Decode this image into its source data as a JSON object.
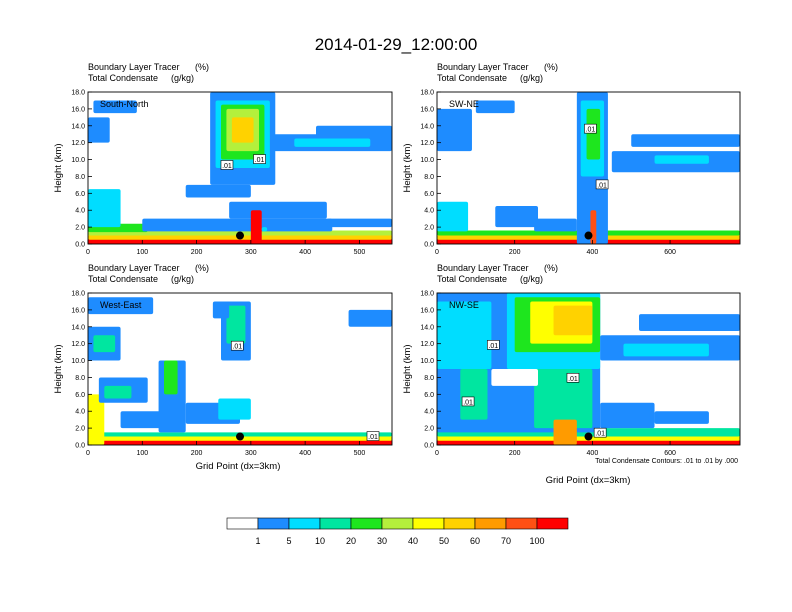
{
  "title": "2014-01-29_12:00:00",
  "panel_header_line1": "Boundary Layer Tracer",
  "panel_header_unit1": "(%)",
  "panel_header_line2": "Total Condensate",
  "panel_header_unit2": "(g/kg)",
  "ylabel": "Height (km)",
  "xlabel": "Grid Point (dx=3km)",
  "contour_note": "Total Condensate Contours: .01 to .01 by .000",
  "colorbar": {
    "levels": [
      "1",
      "5",
      "10",
      "20",
      "30",
      "40",
      "50",
      "60",
      "70",
      "100"
    ],
    "colors": [
      "#ffffff",
      "#1e8cff",
      "#00ddff",
      "#00e6a0",
      "#1ee61e",
      "#b4f03c",
      "#ffff00",
      "#ffd200",
      "#ff9b00",
      "#ff5014",
      "#ff0000"
    ]
  },
  "chart_data": [
    {
      "type": "heatmap",
      "name": "South-North",
      "xlim": [
        0,
        560
      ],
      "ylim": [
        0,
        18
      ],
      "xticks": [
        "0",
        "100",
        "200",
        "300",
        "400",
        "500"
      ],
      "yticks": [
        "0.0",
        "2.0",
        "4.0",
        "6.0",
        "8.0",
        "10.0",
        "12.0",
        "14.0",
        "16.0",
        "18.0"
      ],
      "marker_x": 280,
      "contour_labels": [
        {
          "text": ".01",
          "x": 256,
          "y": 9.3
        },
        {
          "text": ".01",
          "x": 316,
          "y": 10.0
        }
      ],
      "fields": [
        {
          "x": [
            0,
            560
          ],
          "y": [
            0,
            0.7
          ],
          "level": 10
        },
        {
          "x": [
            0,
            560
          ],
          "y": [
            0.5,
            1.1
          ],
          "level": 7
        },
        {
          "x": [
            0,
            560
          ],
          "y": [
            1.0,
            1.6
          ],
          "level": 5
        },
        {
          "x": [
            0,
            110
          ],
          "y": [
            1.4,
            2.4
          ],
          "level": 4
        },
        {
          "x": [
            0,
            60
          ],
          "y": [
            2.0,
            6.5
          ],
          "level": 2
        },
        {
          "x": [
            0,
            40
          ],
          "y": [
            12.0,
            15.0
          ],
          "level": 1
        },
        {
          "x": [
            10,
            90
          ],
          "y": [
            15.5,
            17.0
          ],
          "level": 1
        },
        {
          "x": [
            100,
            450
          ],
          "y": [
            1.5,
            3.0
          ],
          "level": 1
        },
        {
          "x": [
            180,
            300
          ],
          "y": [
            5.5,
            7.0
          ],
          "level": 1
        },
        {
          "x": [
            260,
            440
          ],
          "y": [
            3.0,
            5.0
          ],
          "level": 1
        },
        {
          "x": [
            440,
            560
          ],
          "y": [
            2.0,
            3.0
          ],
          "level": 1
        },
        {
          "x": [
            225,
            345
          ],
          "y": [
            7.0,
            18.0
          ],
          "level": 1
        },
        {
          "x": [
            235,
            335
          ],
          "y": [
            9.0,
            17.0
          ],
          "level": 2
        },
        {
          "x": [
            245,
            325
          ],
          "y": [
            10.0,
            16.5
          ],
          "level": 4
        },
        {
          "x": [
            255,
            315
          ],
          "y": [
            11.0,
            16.0
          ],
          "level": 5
        },
        {
          "x": [
            265,
            305
          ],
          "y": [
            12.0,
            15.0
          ],
          "level": 7
        },
        {
          "x": [
            300,
            320
          ],
          "y": [
            0.0,
            4.0
          ],
          "level": 10
        },
        {
          "x": [
            320,
            330
          ],
          "y": [
            1.5,
            2.0
          ],
          "level": 2
        },
        {
          "x": [
            340,
            560
          ],
          "y": [
            11.0,
            13.0
          ],
          "level": 1
        },
        {
          "x": [
            380,
            520
          ],
          "y": [
            11.5,
            12.5
          ],
          "level": 2
        },
        {
          "x": [
            420,
            560
          ],
          "y": [
            12.5,
            14.0
          ],
          "level": 1
        }
      ]
    },
    {
      "type": "heatmap",
      "name": "SW-NE",
      "xlim": [
        0,
        780
      ],
      "ylim": [
        0,
        18
      ],
      "xticks": [
        "0",
        "200",
        "400",
        "600"
      ],
      "yticks": [
        "0.0",
        "2.0",
        "4.0",
        "6.0",
        "8.0",
        "10.0",
        "12.0",
        "14.0",
        "16.0",
        "18.0"
      ],
      "marker_x": 390,
      "contour_labels": [
        {
          "text": ".01",
          "x": 395,
          "y": 13.6
        },
        {
          "text": ".01",
          "x": 425,
          "y": 7.0
        }
      ],
      "fields": [
        {
          "x": [
            0,
            780
          ],
          "y": [
            0,
            0.7
          ],
          "level": 10
        },
        {
          "x": [
            0,
            780
          ],
          "y": [
            0.5,
            1.1
          ],
          "level": 7
        },
        {
          "x": [
            0,
            780
          ],
          "y": [
            1.0,
            1.6
          ],
          "level": 4
        },
        {
          "x": [
            0,
            80
          ],
          "y": [
            1.5,
            5.0
          ],
          "level": 2
        },
        {
          "x": [
            0,
            90
          ],
          "y": [
            11.0,
            16.0
          ],
          "level": 1
        },
        {
          "x": [
            100,
            200
          ],
          "y": [
            15.5,
            17.0
          ],
          "level": 1
        },
        {
          "x": [
            150,
            260
          ],
          "y": [
            2.0,
            4.5
          ],
          "level": 1
        },
        {
          "x": [
            250,
            360
          ],
          "y": [
            1.5,
            3.0
          ],
          "level": 1
        },
        {
          "x": [
            360,
            440
          ],
          "y": [
            0.0,
            18.0
          ],
          "level": 1
        },
        {
          "x": [
            370,
            430
          ],
          "y": [
            8.0,
            17.0
          ],
          "level": 2
        },
        {
          "x": [
            385,
            420
          ],
          "y": [
            10.0,
            16.0
          ],
          "level": 4
        },
        {
          "x": [
            395,
            410
          ],
          "y": [
            0.0,
            4.0
          ],
          "level": 9
        },
        {
          "x": [
            450,
            780
          ],
          "y": [
            8.5,
            11.0
          ],
          "level": 1
        },
        {
          "x": [
            560,
            700
          ],
          "y": [
            9.5,
            10.5
          ],
          "level": 2
        },
        {
          "x": [
            500,
            780
          ],
          "y": [
            11.5,
            13.0
          ],
          "level": 1
        }
      ]
    },
    {
      "type": "heatmap",
      "name": "West-East",
      "xlim": [
        0,
        560
      ],
      "ylim": [
        0,
        18
      ],
      "xticks": [
        "0",
        "100",
        "200",
        "300",
        "400",
        "500"
      ],
      "yticks": [
        "0.0",
        "2.0",
        "4.0",
        "6.0",
        "8.0",
        "10.0",
        "12.0",
        "14.0",
        "16.0",
        "18.0"
      ],
      "marker_x": 280,
      "contour_labels": [
        {
          "text": ".01",
          "x": 275,
          "y": 11.7
        },
        {
          "text": ".01",
          "x": 525,
          "y": 1.0
        }
      ],
      "fields": [
        {
          "x": [
            0,
            560
          ],
          "y": [
            0,
            0.6
          ],
          "level": 10
        },
        {
          "x": [
            0,
            560
          ],
          "y": [
            0.5,
            1.1
          ],
          "level": 6
        },
        {
          "x": [
            0,
            560
          ],
          "y": [
            1.0,
            1.5
          ],
          "level": 3
        },
        {
          "x": [
            0,
            30
          ],
          "y": [
            0.0,
            6.0
          ],
          "level": 6
        },
        {
          "x": [
            0,
            60
          ],
          "y": [
            10.0,
            14.0
          ],
          "level": 1
        },
        {
          "x": [
            10,
            50
          ],
          "y": [
            11.0,
            13.0
          ],
          "level": 3
        },
        {
          "x": [
            0,
            120
          ],
          "y": [
            15.5,
            17.5
          ],
          "level": 1
        },
        {
          "x": [
            20,
            110
          ],
          "y": [
            5.0,
            8.0
          ],
          "level": 1
        },
        {
          "x": [
            30,
            80
          ],
          "y": [
            5.5,
            7.0
          ],
          "level": 3
        },
        {
          "x": [
            60,
            150
          ],
          "y": [
            2.0,
            4.0
          ],
          "level": 1
        },
        {
          "x": [
            130,
            180
          ],
          "y": [
            1.5,
            10.0
          ],
          "level": 1
        },
        {
          "x": [
            140,
            165
          ],
          "y": [
            6.0,
            10.0
          ],
          "level": 4
        },
        {
          "x": [
            180,
            280
          ],
          "y": [
            2.5,
            5.0
          ],
          "level": 1
        },
        {
          "x": [
            240,
            300
          ],
          "y": [
            3.0,
            5.5
          ],
          "level": 2
        },
        {
          "x": [
            245,
            300
          ],
          "y": [
            10.0,
            17.0
          ],
          "level": 1
        },
        {
          "x": [
            255,
            290
          ],
          "y": [
            12.0,
            16.5
          ],
          "level": 3
        },
        {
          "x": [
            230,
            260
          ],
          "y": [
            15.0,
            17.0
          ],
          "level": 1
        },
        {
          "x": [
            480,
            560
          ],
          "y": [
            14.0,
            16.0
          ],
          "level": 1
        }
      ]
    },
    {
      "type": "heatmap",
      "name": "NW-SE",
      "xlim": [
        0,
        780
      ],
      "ylim": [
        0,
        18
      ],
      "xticks": [
        "0",
        "200",
        "400",
        "600"
      ],
      "yticks": [
        "0.0",
        "2.0",
        "4.0",
        "6.0",
        "8.0",
        "10.0",
        "12.0",
        "14.0",
        "16.0",
        "18.0"
      ],
      "marker_x": 390,
      "contour_labels": [
        {
          "text": ".01",
          "x": 145,
          "y": 11.8
        },
        {
          "text": ".01",
          "x": 350,
          "y": 7.9
        },
        {
          "text": ".01",
          "x": 80,
          "y": 5.1
        },
        {
          "text": ".01",
          "x": 420,
          "y": 1.4
        }
      ],
      "fields": [
        {
          "x": [
            0,
            780
          ],
          "y": [
            0,
            0.6
          ],
          "level": 10
        },
        {
          "x": [
            0,
            780
          ],
          "y": [
            0.5,
            1.2
          ],
          "level": 6
        },
        {
          "x": [
            0,
            780
          ],
          "y": [
            1.0,
            2.0
          ],
          "level": 3
        },
        {
          "x": [
            0,
            420
          ],
          "y": [
            1.5,
            18.0
          ],
          "level": 1
        },
        {
          "x": [
            0,
            140
          ],
          "y": [
            9.0,
            17.0
          ],
          "level": 2
        },
        {
          "x": [
            180,
            420
          ],
          "y": [
            9.0,
            18.0
          ],
          "level": 2
        },
        {
          "x": [
            200,
            420
          ],
          "y": [
            11.0,
            17.5
          ],
          "level": 4
        },
        {
          "x": [
            240,
            400
          ],
          "y": [
            12.0,
            17.0
          ],
          "level": 6
        },
        {
          "x": [
            300,
            400
          ],
          "y": [
            13.0,
            16.5
          ],
          "level": 7
        },
        {
          "x": [
            60,
            130
          ],
          "y": [
            3.0,
            9.0
          ],
          "level": 3
        },
        {
          "x": [
            250,
            400
          ],
          "y": [
            2.0,
            9.0
          ],
          "level": 3
        },
        {
          "x": [
            300,
            360
          ],
          "y": [
            0.0,
            3.0
          ],
          "level": 8
        },
        {
          "x": [
            140,
            260
          ],
          "y": [
            7.0,
            9.0
          ],
          "level": 0
        },
        {
          "x": [
            420,
            560
          ],
          "y": [
            2.0,
            5.0
          ],
          "level": 1
        },
        {
          "x": [
            560,
            700
          ],
          "y": [
            2.5,
            4.0
          ],
          "level": 1
        },
        {
          "x": [
            420,
            780
          ],
          "y": [
            10.0,
            13.0
          ],
          "level": 1
        },
        {
          "x": [
            480,
            700
          ],
          "y": [
            10.5,
            12.0
          ],
          "level": 2
        },
        {
          "x": [
            520,
            780
          ],
          "y": [
            13.5,
            15.5
          ],
          "level": 1
        }
      ]
    }
  ]
}
